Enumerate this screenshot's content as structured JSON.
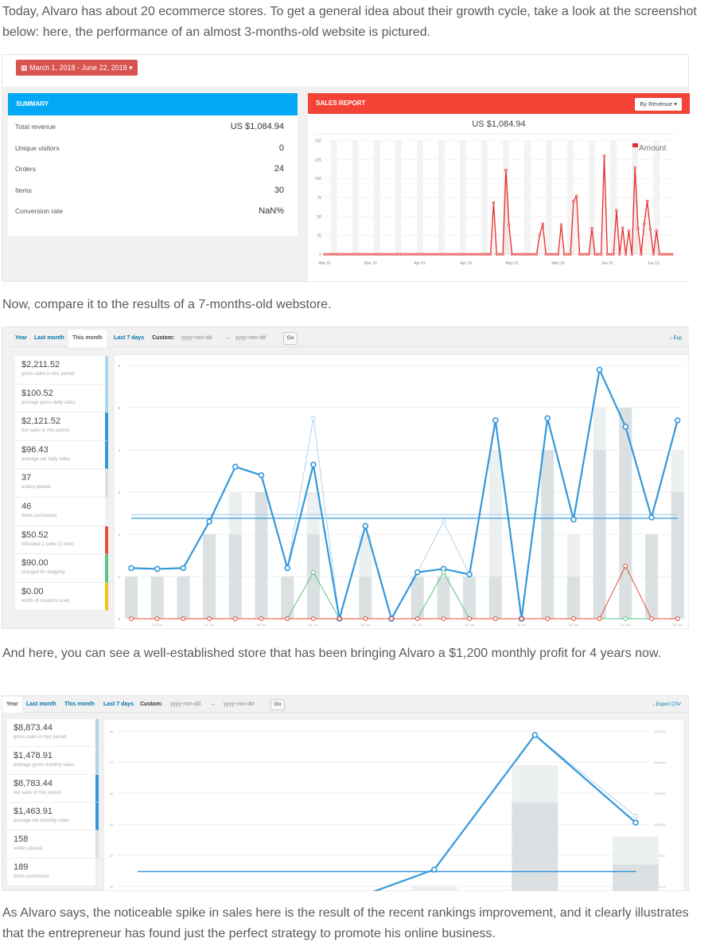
{
  "paragraphs": {
    "p1": "Today, Alvaro has about 20 ecommerce stores. To get a general idea about their growth cycle, take a look at the screenshot below: here, the performance of an almost 3-months-old website is pictured.",
    "p2": "Now, compare it to the results of a 7-months-old webstore.",
    "p3": "And here, you can see a well-established store that has been bringing Alvaro a $1,200 monthly profit for 4 years now.",
    "p4": "As Alvaro says, the noticeable spike in sales here is the result of the recent rankings improvement, and it clearly illustrates that the entrepreneur has found just the perfect strategy to promote his online business."
  },
  "shot1": {
    "date_range": "March 1, 2018 - June 22, 2018",
    "summary": {
      "title": "SUMMARY",
      "rows": [
        {
          "label": "Total revenue",
          "value": "US $1,084.94"
        },
        {
          "label": "Unique visitors",
          "value": "0"
        },
        {
          "label": "Orders",
          "value": "24"
        },
        {
          "label": "Items",
          "value": "30"
        },
        {
          "label": "Conversion rate",
          "value": "NaN%"
        }
      ]
    },
    "sales_report": {
      "title": "SALES REPORT",
      "dropdown": "By Revenue",
      "total": "US $1,084.94"
    }
  },
  "shot2": {
    "tabs": [
      "Year",
      "Last month",
      "This month",
      "Last 7 days"
    ],
    "active_tab": "This month",
    "custom_label": "Custom:",
    "date_placeholder": "yyyy-mm-dd",
    "dash": "–",
    "go": "Go",
    "export": "Exp",
    "stats": [
      {
        "value": "$2,211.52",
        "label": "gross sales in this period",
        "color": "#b1d4ef"
      },
      {
        "value": "$100.52",
        "label": "average gross daily sales",
        "color": "#b1d4ef"
      },
      {
        "value": "$2,121.52",
        "label": "net sales in this period",
        "color": "#3498db"
      },
      {
        "value": "$96.43",
        "label": "average net daily sales",
        "color": "#3498db"
      },
      {
        "value": "37",
        "label": "orders placed",
        "color": "#dbe1e3"
      },
      {
        "value": "46",
        "label": "items purchased",
        "color": "#ecf0f1"
      },
      {
        "value": "$50.52",
        "label": "refunded 1 order (1 item)",
        "color": "#e74c3c"
      },
      {
        "value": "$90.00",
        "label": "charged for shipping",
        "color": "#5cc488"
      },
      {
        "value": "$0.00",
        "label": "worth of coupons used",
        "color": "#f1c40f"
      }
    ]
  },
  "shot3": {
    "tabs": [
      "Year",
      "Last month",
      "This month",
      "Last 7 days"
    ],
    "active_tab": "Year",
    "custom_label": "Custom:",
    "date_placeholder": "yyyy-mm-dd",
    "dash": "–",
    "go": "Go",
    "export": "Export CSV",
    "stats": [
      {
        "value": "$8,873.44",
        "label": "gross sales in this period",
        "color": "#b1d4ef"
      },
      {
        "value": "$1,478.91",
        "label": "average gross monthly sales",
        "color": "#b1d4ef"
      },
      {
        "value": "$8,783.44",
        "label": "net sales in this period",
        "color": "#3498db"
      },
      {
        "value": "$1,463.91",
        "label": "average net monthly sales",
        "color": "#3498db"
      },
      {
        "value": "158",
        "label": "orders placed",
        "color": "#dbe1e3"
      },
      {
        "value": "189",
        "label": "items purchased",
        "color": "#ecf0f1"
      }
    ]
  },
  "chart_data": [
    {
      "type": "line",
      "title": "US $1,084.94",
      "legend": [
        "Amount"
      ],
      "legend_position": "top-right",
      "color": "#e52b2b",
      "x_range": [
        "2018-03-01",
        "2018-06-22"
      ],
      "x_ticks": [
        "Mar 01",
        "Mar 16",
        "Apr 01",
        "Apr 16",
        "May 01",
        "May 16",
        "Jun 01",
        "Jun 16"
      ],
      "ylim": [
        0,
        150
      ],
      "y_ticks": [
        0,
        25,
        50,
        75,
        100,
        125,
        150
      ],
      "weekend_shading": true,
      "default_value": 0,
      "points": [
        {
          "date": "2018-04-25",
          "value": 68
        },
        {
          "date": "2018-04-29",
          "value": 111
        },
        {
          "date": "2018-04-30",
          "value": 39
        },
        {
          "date": "2018-05-10",
          "value": 26
        },
        {
          "date": "2018-05-11",
          "value": 40
        },
        {
          "date": "2018-05-17",
          "value": 39
        },
        {
          "date": "2018-05-21",
          "value": 70
        },
        {
          "date": "2018-05-22",
          "value": 77
        },
        {
          "date": "2018-05-27",
          "value": 34
        },
        {
          "date": "2018-05-31",
          "value": 130
        },
        {
          "date": "2018-06-04",
          "value": 58
        },
        {
          "date": "2018-06-06",
          "value": 35
        },
        {
          "date": "2018-06-08",
          "value": 31
        },
        {
          "date": "2018-06-10",
          "value": 114
        },
        {
          "date": "2018-06-11",
          "value": 34
        },
        {
          "date": "2018-06-13",
          "value": 40
        },
        {
          "date": "2018-06-14",
          "value": 70
        },
        {
          "date": "2018-06-15",
          "value": 33
        },
        {
          "date": "2018-06-17",
          "value": 31
        }
      ]
    },
    {
      "type": "bar+line",
      "categories": [
        "01 Jun",
        "02 Jun",
        "03 Jun",
        "04 Jun",
        "05 Jun",
        "06 Jun",
        "07 Jun",
        "08 Jun",
        "09 Jun",
        "10 Jun",
        "11 Jun",
        "12 Jun",
        "13 Jun",
        "14 Jun",
        "15 Jun",
        "16 Jun",
        "17 Jun",
        "18 Jun",
        "19 Jun",
        "20 Jun",
        "21 Jun",
        "22 Jun"
      ],
      "x_tick_labels": [
        "02 Jun",
        "04 Jun",
        "06 Jun",
        "08 Jun",
        "10 Jun",
        "12 Jun",
        "14 Jun",
        "16 Jun",
        "18 Jun",
        "20 Jun",
        "22 Jun"
      ],
      "ylim": [
        0,
        6
      ],
      "y_ticks": [
        0,
        1,
        2,
        3,
        4,
        5,
        6
      ],
      "bars": [
        {
          "color": "#ecf0f1",
          "values": [
            1,
            1,
            1,
            2,
            3,
            3,
            1,
            3,
            0,
            2,
            0,
            1,
            1,
            1,
            4,
            0,
            4,
            2,
            5,
            5,
            2,
            4
          ]
        },
        {
          "color": "#dbe1e3",
          "values": [
            1,
            1,
            1,
            2,
            2,
            3,
            1,
            2,
            0,
            1,
            0,
            1,
            1,
            1,
            1,
            0,
            4,
            1,
            4,
            5,
            2,
            3
          ]
        }
      ],
      "lines": [
        {
          "color": "#b1d4ef",
          "values": [
            1.2,
            1.18,
            1.2,
            2.3,
            3.6,
            3.4,
            1.2,
            4.75,
            0,
            2.2,
            0,
            1.1,
            2.3,
            1.05,
            4.7,
            0,
            4.75,
            2.35,
            5.9,
            4.55,
            2.4,
            4.7
          ]
        },
        {
          "color": "#3498db",
          "values": [
            1.2,
            1.18,
            1.2,
            2.3,
            3.6,
            3.4,
            1.2,
            3.65,
            0,
            2.2,
            0,
            1.1,
            1.18,
            1.05,
            4.7,
            0,
            4.75,
            2.35,
            5.9,
            4.55,
            2.4,
            4.7
          ]
        },
        {
          "color": "#5cc488",
          "values": [
            0,
            0,
            0,
            0,
            0,
            0,
            0,
            1.1,
            0,
            0,
            0,
            0,
            1.1,
            0,
            0,
            0,
            0,
            0,
            0,
            0,
            0,
            0
          ]
        },
        {
          "color": "#e74c3c",
          "values": [
            0,
            0,
            0,
            0,
            0,
            0,
            0,
            0,
            0,
            0,
            0,
            0,
            0,
            0,
            0,
            0,
            0,
            0,
            0,
            1.25,
            0,
            0
          ]
        }
      ],
      "averages": [
        {
          "color": "#b1d4ef",
          "value": 2.47
        },
        {
          "color": "#3498db",
          "value": 2.38
        }
      ]
    },
    {
      "type": "bar+line",
      "y_ticks_left": [
        30,
        40,
        50,
        60,
        70,
        80
      ],
      "y_ticks_right": [
        "1264.13",
        "1685.51",
        "2106.89",
        "2528.26",
        "2949.64",
        "3371.02"
      ],
      "ylim_left": [
        30,
        80
      ],
      "ylim_right": [
        1264.13,
        3371.02
      ],
      "bars": [
        {
          "color": "#ecf0f1",
          "values": [
            null,
            null,
            null,
            30,
            69,
            46
          ]
        },
        {
          "color": "#dbe1e3",
          "values": [
            null,
            null,
            null,
            null,
            57,
            37
          ]
        }
      ],
      "lines": [
        {
          "color": "#b1d4ef",
          "values": [
            null,
            null,
            994,
            1491,
            3317,
            2215
          ]
        },
        {
          "color": "#3498db",
          "values": [
            null,
            null,
            994,
            1491,
            3317,
            2128
          ]
        }
      ],
      "averages": [
        {
          "color": "#3498db",
          "value": 1463.91
        }
      ]
    }
  ]
}
